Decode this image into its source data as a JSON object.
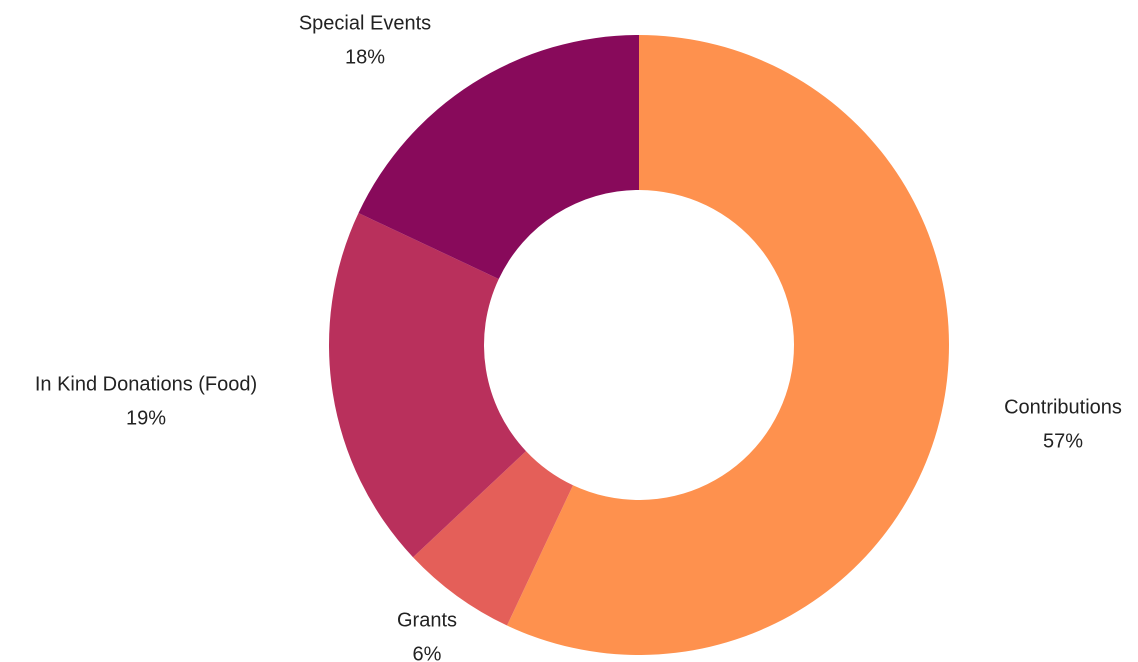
{
  "chart_data": {
    "type": "pie",
    "donut": true,
    "title": "",
    "slices": [
      {
        "label": "Contributions",
        "value_label": "57%",
        "value": 57,
        "color": "#fe914e"
      },
      {
        "label": "Grants",
        "value_label": "6%",
        "value": 6,
        "color": "#e45f59"
      },
      {
        "label": "In Kind Donations (Food)",
        "value_label": "19%",
        "value": 19,
        "color": "#b9305c"
      },
      {
        "label": "Special Events",
        "value_label": "18%",
        "value": 18,
        "color": "#880a5b"
      }
    ],
    "start": "12 o'clock",
    "direction": "clockwise",
    "legend": "none"
  }
}
